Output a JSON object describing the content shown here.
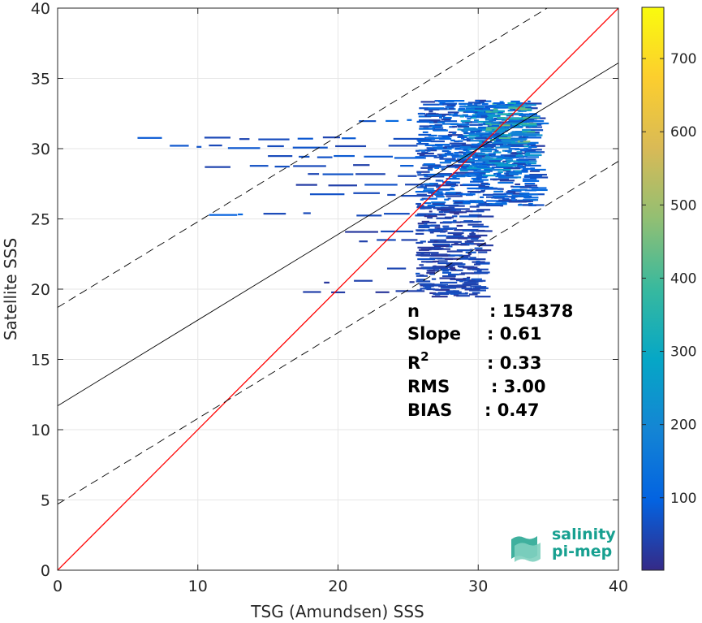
{
  "chart_data": {
    "type": "heatmap",
    "title": "",
    "xlabel": "TSG (Amundsen) SSS",
    "ylabel": "Satellite SSS",
    "xlim": [
      0,
      40
    ],
    "ylim": [
      0,
      40
    ],
    "x_ticks": [
      0,
      10,
      20,
      30,
      40
    ],
    "y_ticks": [
      0,
      5,
      10,
      15,
      20,
      25,
      30,
      35,
      40
    ],
    "grid": true,
    "colorbar": {
      "colormap": "parula",
      "range": [
        1,
        770
      ],
      "ticks": [
        100,
        200,
        300,
        400,
        500,
        600,
        700
      ]
    },
    "lines": [
      {
        "kind": "identity",
        "color": "#ff0000",
        "slope": 1.0,
        "intercept": 0
      },
      {
        "kind": "regression",
        "color": "#000000",
        "slope": 0.61,
        "intercept": 11.7
      },
      {
        "kind": "regression-upper-bound",
        "color": "#000000",
        "style": "dashed",
        "slope": 0.61,
        "intercept": 18.7
      },
      {
        "kind": "regression-lower-bound",
        "color": "#000000",
        "style": "dashed",
        "slope": 0.61,
        "intercept": 4.7
      }
    ],
    "density_rows": [
      {
        "y": 30.8,
        "x0": 5.7,
        "x1": 33.0,
        "level": 60
      },
      {
        "y": 30.2,
        "x0": 8.0,
        "x1": 33.5,
        "level": 70
      },
      {
        "y": 29.5,
        "x0": 15.0,
        "x1": 33.5,
        "level": 80
      },
      {
        "y": 28.8,
        "x0": 10.5,
        "x1": 33.0,
        "level": 60
      },
      {
        "y": 28.2,
        "x0": 15.5,
        "x1": 31.0,
        "level": 60
      },
      {
        "y": 27.5,
        "x0": 17.0,
        "x1": 30.5,
        "level": 50
      },
      {
        "y": 26.8,
        "x0": 18.0,
        "x1": 29.5,
        "level": 50
      },
      {
        "y": 25.4,
        "x0": 10.8,
        "x1": 30.0,
        "level": 80
      },
      {
        "y": 24.2,
        "x0": 20.5,
        "x1": 30.0,
        "level": 40
      },
      {
        "y": 23.5,
        "x0": 21.5,
        "x1": 29.5,
        "level": 40
      },
      {
        "y": 22.5,
        "x0": 25.0,
        "x1": 30.0,
        "level": 40
      },
      {
        "y": 21.5,
        "x0": 23.5,
        "x1": 29.5,
        "level": 40
      },
      {
        "y": 20.6,
        "x0": 19.0,
        "x1": 29.0,
        "level": 40
      },
      {
        "y": 19.9,
        "x0": 17.5,
        "x1": 28.5,
        "level": 30
      },
      {
        "y": 32.0,
        "x0": 19.0,
        "x1": 33.8,
        "level": 90
      },
      {
        "y": 32.8,
        "x0": 27.0,
        "x1": 33.8,
        "level": 120
      },
      {
        "y": 33.2,
        "x0": 31.0,
        "x1": 33.8,
        "level": 300
      }
    ],
    "density_blocks": [
      {
        "x0": 25.5,
        "x1": 33.8,
        "y0": 26.0,
        "y1": 33.5,
        "level": 90
      },
      {
        "x0": 28.5,
        "x1": 33.5,
        "y0": 28.0,
        "y1": 33.2,
        "level": 180
      },
      {
        "x0": 30.5,
        "x1": 33.2,
        "y0": 30.5,
        "y1": 33.0,
        "level": 320
      },
      {
        "x0": 25.5,
        "x1": 30.0,
        "y0": 19.5,
        "y1": 26.0,
        "level": 50
      }
    ],
    "stats": [
      {
        "label": "n",
        "value": ": 154378"
      },
      {
        "label": "Slope",
        "value": ": 0.61"
      },
      {
        "label": "R",
        "sup": "2",
        "value": ": 0.33"
      },
      {
        "label": "RMS",
        "value": ": 3.00"
      },
      {
        "label": "BIAS",
        "value": ": 0.47"
      }
    ]
  },
  "logo": {
    "line1": "salinity",
    "line2": "pi-mep"
  }
}
